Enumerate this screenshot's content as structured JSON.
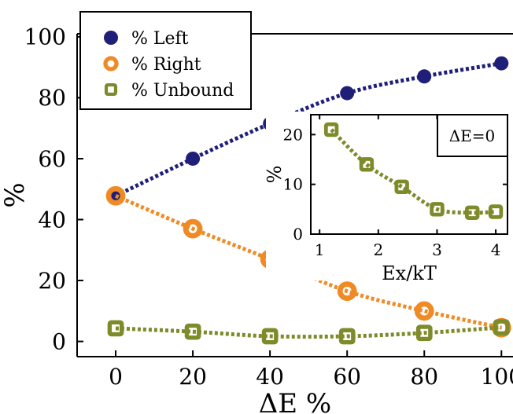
{
  "chart_data": [
    {
      "type": "line",
      "xlabel": "ΔE %",
      "ylabel": "%",
      "xlim": [
        -10,
        103
      ],
      "ylim": [
        -5,
        101
      ],
      "x_ticks": [
        0,
        20,
        40,
        60,
        80,
        100
      ],
      "x_tick_labels": [
        "0",
        "20",
        "40",
        "60",
        "80",
        "100"
      ],
      "y_ticks": [
        0,
        20,
        40,
        60,
        80,
        100
      ],
      "y_tick_labels": [
        "0",
        "20",
        "40",
        "60",
        "80",
        "100"
      ],
      "legend_position": "top-left",
      "series": [
        {
          "name": "% Left",
          "marker": "filled-circle",
          "color": "#1f1f7a",
          "x": [
            0,
            20,
            40,
            60,
            80,
            100
          ],
          "y": [
            47.8,
            60,
            71.5,
            81.5,
            87,
            91.3
          ]
        },
        {
          "name": "% Right",
          "marker": "open-circle",
          "color": "#f08a24",
          "x": [
            0,
            20,
            40,
            60,
            80,
            100
          ],
          "y": [
            47.8,
            37,
            27,
            16.5,
            10,
            4.5
          ]
        },
        {
          "name": "% Unbound",
          "marker": "open-square",
          "color": "#7f8b2a",
          "x": [
            0,
            20,
            40,
            60,
            80,
            100
          ],
          "y": [
            4.3,
            3.2,
            1.7,
            1.7,
            2.8,
            4.6
          ]
        }
      ]
    },
    {
      "type": "line",
      "annotation": "ΔE=0",
      "xlabel": "Ex/kT",
      "ylabel": "%",
      "xlim": [
        0.85,
        4.2
      ],
      "ylim": [
        0,
        24
      ],
      "x_ticks": [
        1,
        2,
        3,
        4
      ],
      "x_tick_labels": [
        "1",
        "2",
        "3",
        "4"
      ],
      "y_ticks": [
        0,
        10,
        20
      ],
      "y_tick_labels": [
        "0",
        "10",
        "20"
      ],
      "series": [
        {
          "name": "",
          "marker": "open-square",
          "color": "#7f8b2a",
          "x": [
            1.2,
            1.8,
            2.4,
            3.0,
            3.6,
            4.0
          ],
          "y": [
            21,
            14,
            9.5,
            5,
            4.3,
            4.5
          ]
        }
      ]
    }
  ]
}
